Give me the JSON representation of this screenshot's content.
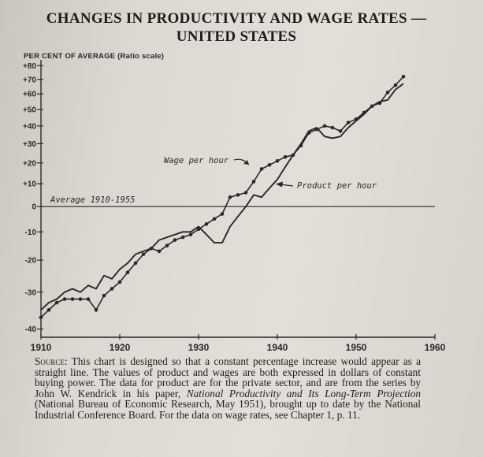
{
  "chart_data": {
    "type": "line",
    "title": "CHANGES IN PRODUCTIVITY AND WAGE RATES —",
    "subtitle": "UNITED STATES",
    "ylabel": "PER CENT OF AVERAGE (Ratio scale)",
    "xlabel": "",
    "y_scale": "log",
    "xlim": [
      1910,
      1960
    ],
    "ylim": [
      -42,
      82
    ],
    "x_ticks": [
      1910,
      1920,
      1930,
      1940,
      1950,
      1960
    ],
    "y_ticks": [
      80,
      70,
      60,
      50,
      40,
      30,
      20,
      10,
      0,
      -10,
      -20,
      -30,
      -40
    ],
    "y_tick_labels": [
      "+80",
      "+70",
      "+60",
      "+50",
      "+40",
      "+30",
      "+20",
      "+10",
      "0",
      "-10",
      "-20",
      "-30",
      "-40"
    ],
    "x_tick_labels": [
      "1910",
      "1920",
      "1930",
      "1940",
      "1950",
      "1960"
    ],
    "grid": false,
    "reference_line": {
      "y": 0,
      "label": "Average 1910-1955"
    },
    "annotations": [
      {
        "text": "Wage per hour",
        "series": "Wage per hour"
      },
      {
        "text": "Product per hour",
        "series": "Product per hour"
      }
    ],
    "series": [
      {
        "name": "Wage per hour",
        "markers": true,
        "x": [
          1910,
          1911,
          1912,
          1913,
          1914,
          1915,
          1916,
          1917,
          1918,
          1919,
          1920,
          1921,
          1922,
          1923,
          1924,
          1925,
          1926,
          1927,
          1928,
          1929,
          1930,
          1931,
          1932,
          1933,
          1934,
          1935,
          1936,
          1937,
          1938,
          1939,
          1940,
          1941,
          1942,
          1943,
          1944,
          1945,
          1946,
          1947,
          1948,
          1949,
          1950,
          1951,
          1952,
          1953,
          1954,
          1955,
          1956
        ],
        "values": [
          -37,
          -35,
          -33,
          -32,
          -32,
          -32,
          -32,
          -35,
          -31,
          -29,
          -27,
          -24,
          -21,
          -18,
          -16,
          -17,
          -15,
          -13,
          -12,
          -11,
          -9,
          -7,
          -5,
          -3,
          4,
          5,
          6,
          11,
          17,
          19,
          21,
          23,
          24,
          29,
          36,
          38,
          40,
          39,
          37,
          42,
          44,
          48,
          52,
          54,
          61,
          66,
          72
        ]
      },
      {
        "name": "Product per hour",
        "markers": false,
        "x": [
          1910,
          1911,
          1912,
          1913,
          1914,
          1915,
          1916,
          1917,
          1918,
          1919,
          1920,
          1921,
          1922,
          1923,
          1924,
          1925,
          1926,
          1927,
          1928,
          1929,
          1930,
          1931,
          1932,
          1933,
          1934,
          1935,
          1936,
          1937,
          1938,
          1939,
          1940,
          1941,
          1942,
          1943,
          1944,
          1945,
          1946,
          1947,
          1948,
          1949,
          1950,
          1951,
          1952,
          1953,
          1954,
          1955,
          1956
        ],
        "values": [
          -35,
          -33,
          -32,
          -30,
          -29,
          -30,
          -28,
          -29,
          -25,
          -26,
          -23,
          -21,
          -18,
          -17,
          -16,
          -13,
          -12,
          -11,
          -10,
          -10,
          -8,
          -11,
          -14,
          -14,
          -8,
          -4,
          0,
          5,
          4,
          8,
          12,
          18,
          24,
          30,
          37,
          39,
          34,
          33,
          34,
          39,
          43,
          47,
          52,
          55,
          56,
          63,
          67
        ]
      }
    ]
  },
  "source_note": {
    "head": "Source:",
    "line1": " This chart is designed so that a constant percentage increase would appear as a straight line. The values of product and wages are both expressed in dollars of constant buying power. The data for product are for the private sector, and are from the series by John W. Kendrick in his paper, ",
    "italic": "National Productivity and Its Long-Term Projection",
    "line2": " (National Bureau of Economic Research, May 1951), brought up to date by the National Industrial Conference Board. For the data on wage rates, see Chapter 1, p. 11."
  },
  "colors": {
    "ink": "#2a2825",
    "paper": "#dedbd4"
  }
}
